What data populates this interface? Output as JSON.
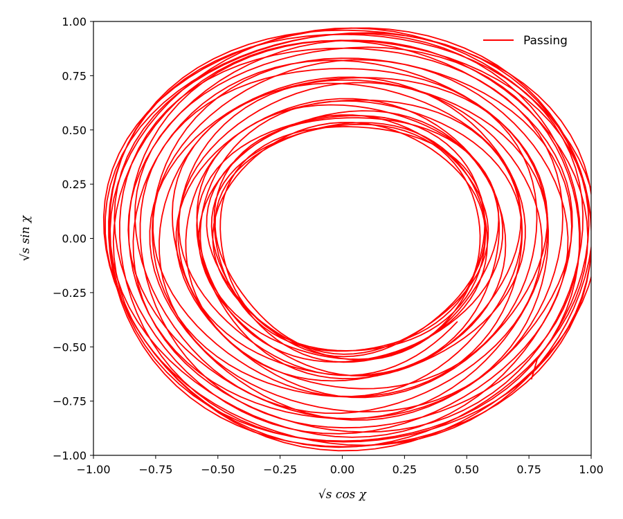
{
  "chart_data": {
    "type": "line",
    "title": "",
    "xlabel": "√s cos χ",
    "ylabel": "√s sin χ",
    "xlim": [
      -1.0,
      1.0
    ],
    "ylim": [
      -1.0,
      1.0
    ],
    "xticks": [
      "−1.00",
      "−0.75",
      "−0.50",
      "−0.25",
      "0.00",
      "0.25",
      "0.50",
      "0.75",
      "1.00"
    ],
    "yticks": [
      "−1.00",
      "−0.75",
      "−0.50",
      "−0.25",
      "0.00",
      "0.25",
      "0.50",
      "0.75",
      "1.00"
    ],
    "grid": false,
    "legend_position": "top-right",
    "series": [
      {
        "name": "Passing",
        "color": "#ff0000",
        "trajectory": {
          "r_min": 0.45,
          "r_max": 0.985,
          "x_offset": 0.03,
          "y_scale": 0.985,
          "turns": 32,
          "start": [
            0.76,
            -0.65
          ]
        }
      }
    ]
  }
}
